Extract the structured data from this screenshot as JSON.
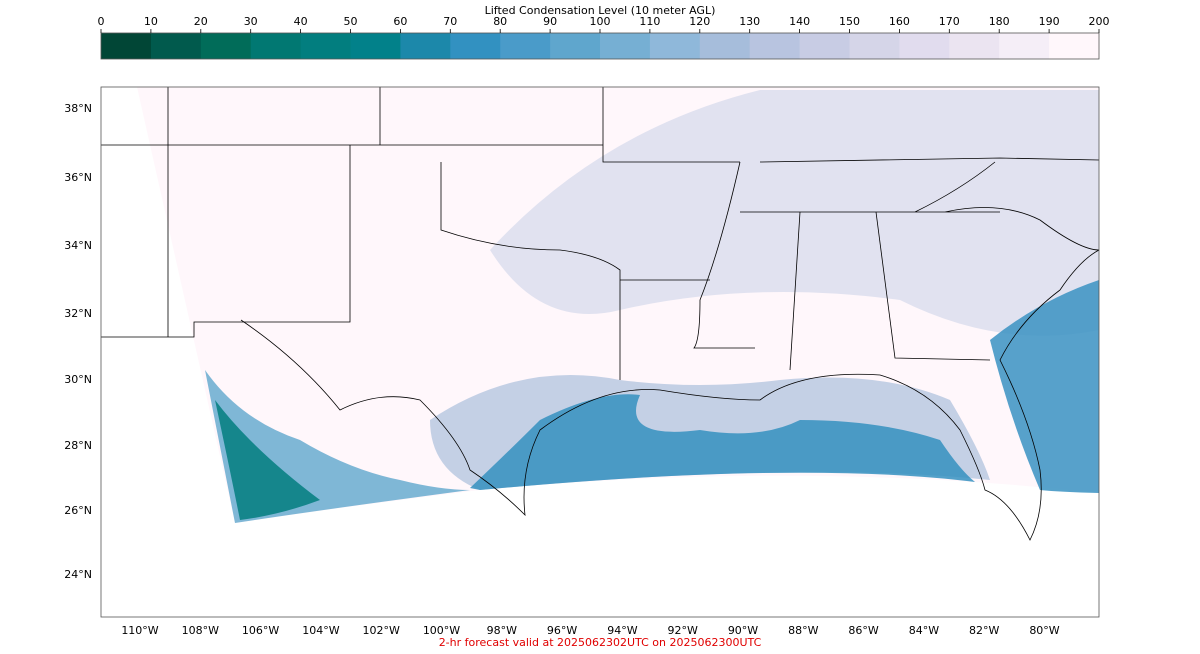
{
  "colorbar": {
    "title": "Lifted Condensation Level (10 meter AGL)",
    "ticks": [
      0,
      10,
      20,
      30,
      40,
      50,
      60,
      70,
      80,
      90,
      100,
      110,
      120,
      130,
      140,
      150,
      160,
      170,
      180,
      190,
      200
    ],
    "colors": [
      "#014636",
      "#015a4d",
      "#016c59",
      "#017872",
      "#027e7f",
      "#02818a",
      "#1c88aa",
      "#3291c1",
      "#4a9bc9",
      "#5fa6cd",
      "#76afd3",
      "#8fb8da",
      "#a6bddb",
      "#b8c4e0",
      "#c8cce4",
      "#d5d5e8",
      "#e1dcee",
      "#ebe4f1",
      "#f5eef7",
      "#fff7fb"
    ]
  },
  "map": {
    "lat_labels": [
      "38°N",
      "36°N",
      "34°N",
      "32°N",
      "30°N",
      "28°N",
      "26°N",
      "24°N"
    ],
    "lon_labels": [
      "110°W",
      "108°W",
      "106°W",
      "104°W",
      "102°W",
      "100°W",
      "98°W",
      "96°W",
      "94°W",
      "92°W",
      "90°W",
      "88°W",
      "86°W",
      "84°W",
      "82°W",
      "80°W"
    ]
  },
  "footer": "2-hr forecast valid at 2025062302UTC on 2025062300UTC"
}
